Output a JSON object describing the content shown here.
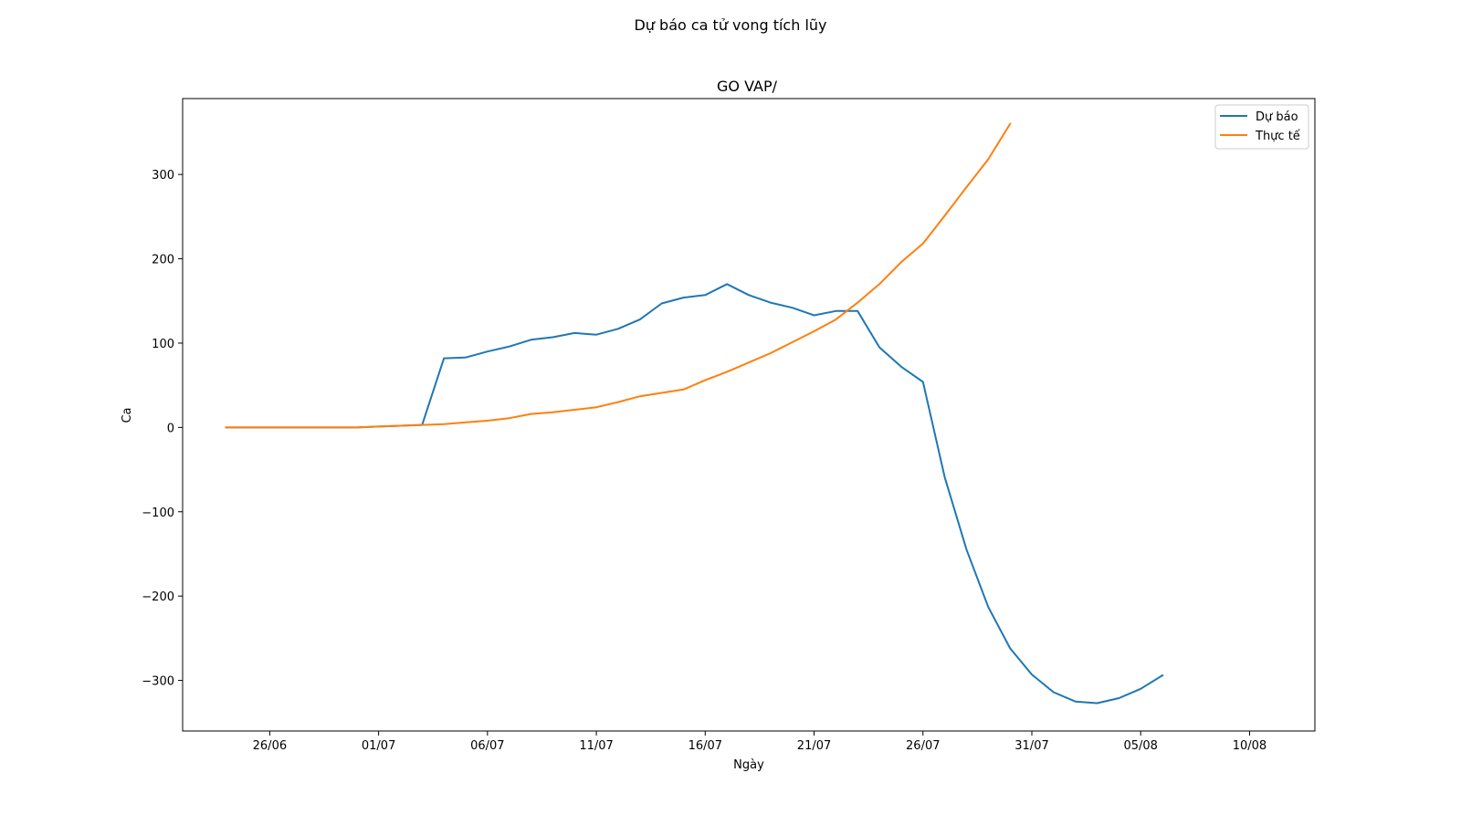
{
  "figure": {
    "suptitle": "Dự báo ca tử vong tích lũy"
  },
  "chart_data": {
    "type": "line",
    "title": "GO VAP/",
    "xlabel": "Ngày",
    "ylabel": "Ca",
    "x_type": "date",
    "year": 2021,
    "xlim": [
      "2021-06-22",
      "2021-08-13"
    ],
    "ylim": [
      -360,
      390
    ],
    "xticks": [
      {
        "date": "2021-06-26",
        "label": "26/06"
      },
      {
        "date": "2021-07-01",
        "label": "01/07"
      },
      {
        "date": "2021-07-06",
        "label": "06/07"
      },
      {
        "date": "2021-07-11",
        "label": "11/07"
      },
      {
        "date": "2021-07-16",
        "label": "16/07"
      },
      {
        "date": "2021-07-21",
        "label": "21/07"
      },
      {
        "date": "2021-07-26",
        "label": "26/07"
      },
      {
        "date": "2021-07-31",
        "label": "31/07"
      },
      {
        "date": "2021-08-05",
        "label": "05/08"
      },
      {
        "date": "2021-08-10",
        "label": "10/08"
      }
    ],
    "yticks": [
      {
        "value": 300,
        "label": "300"
      },
      {
        "value": 200,
        "label": "200"
      },
      {
        "value": 100,
        "label": "100"
      },
      {
        "value": 0,
        "label": "0"
      },
      {
        "value": -100,
        "label": "−100"
      },
      {
        "value": -200,
        "label": "−200"
      },
      {
        "value": -300,
        "label": "−300"
      }
    ],
    "grid": false,
    "legend_position": "top-right",
    "series": [
      {
        "name": "Dự báo",
        "color": "#1f77b4",
        "x": [
          "2021-06-24",
          "2021-06-25",
          "2021-06-26",
          "2021-06-27",
          "2021-06-28",
          "2021-06-29",
          "2021-06-30",
          "2021-07-01",
          "2021-07-02",
          "2021-07-03",
          "2021-07-04",
          "2021-07-05",
          "2021-07-06",
          "2021-07-07",
          "2021-07-08",
          "2021-07-09",
          "2021-07-10",
          "2021-07-11",
          "2021-07-12",
          "2021-07-13",
          "2021-07-14",
          "2021-07-15",
          "2021-07-16",
          "2021-07-17",
          "2021-07-18",
          "2021-07-19",
          "2021-07-20",
          "2021-07-21",
          "2021-07-22",
          "2021-07-23",
          "2021-07-24",
          "2021-07-25",
          "2021-07-26",
          "2021-07-27",
          "2021-07-28",
          "2021-07-29",
          "2021-07-30",
          "2021-07-31",
          "2021-08-01",
          "2021-08-02",
          "2021-08-03",
          "2021-08-04",
          "2021-08-05",
          "2021-08-06"
        ],
        "y": [
          0,
          0,
          0,
          0,
          0,
          0,
          0,
          1,
          2,
          3,
          82,
          83,
          90,
          96,
          104,
          107,
          112,
          110,
          117,
          128,
          147,
          154,
          157,
          170,
          157,
          148,
          142,
          133,
          138,
          138,
          95,
          72,
          54,
          -59,
          -145,
          -213,
          -262,
          -293,
          -314,
          -325,
          -327,
          -321,
          -310,
          -294
        ]
      },
      {
        "name": "Thực tế",
        "color": "#ff7f0e",
        "x": [
          "2021-06-24",
          "2021-06-25",
          "2021-06-26",
          "2021-06-27",
          "2021-06-28",
          "2021-06-29",
          "2021-06-30",
          "2021-07-01",
          "2021-07-02",
          "2021-07-03",
          "2021-07-04",
          "2021-07-05",
          "2021-07-06",
          "2021-07-07",
          "2021-07-08",
          "2021-07-09",
          "2021-07-10",
          "2021-07-11",
          "2021-07-12",
          "2021-07-13",
          "2021-07-14",
          "2021-07-15",
          "2021-07-16",
          "2021-07-17",
          "2021-07-18",
          "2021-07-19",
          "2021-07-20",
          "2021-07-21",
          "2021-07-22",
          "2021-07-23",
          "2021-07-24",
          "2021-07-25",
          "2021-07-26",
          "2021-07-27",
          "2021-07-28",
          "2021-07-29",
          "2021-07-30"
        ],
        "y": [
          0,
          0,
          0,
          0,
          0,
          0,
          0,
          1,
          2,
          3,
          4,
          6,
          8,
          11,
          16,
          18,
          21,
          24,
          30,
          37,
          41,
          45,
          56,
          66,
          77,
          88,
          101,
          114,
          128,
          148,
          170,
          196,
          218,
          251,
          285,
          318,
          360
        ]
      }
    ]
  }
}
